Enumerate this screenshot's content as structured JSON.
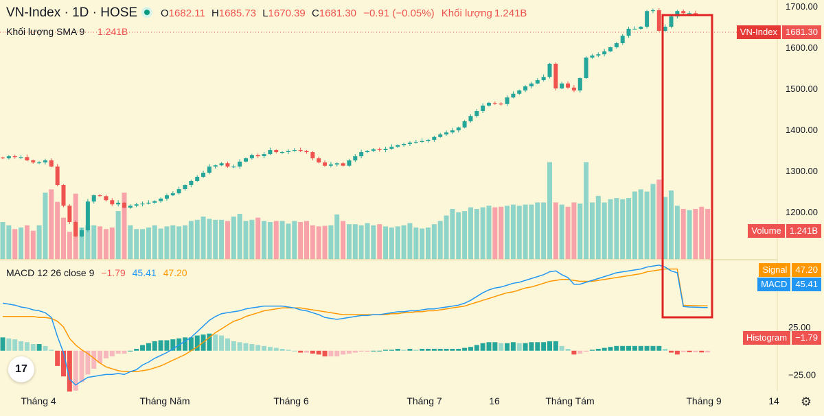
{
  "header": {
    "symbol": "VN-Index · 1D · HOSE",
    "open_label": "O",
    "open": "1682.11",
    "high_label": "H",
    "high": "1685.73",
    "low_label": "L",
    "low": "1670.39",
    "close_label": "C",
    "close": "1681.30",
    "change": "−0.91 (−0.05%)",
    "volume_label": "Khối lượng",
    "volume": "1.241B",
    "sma_label": "Khối lượng SMA 9",
    "sma_value": "1.241B"
  },
  "macd_header": {
    "label": "MACD 12 26 close 9",
    "hist": "−1.79",
    "macd": "45.41",
    "signal": "47.20"
  },
  "badges": {
    "price_name": "VN-Index",
    "price_value": "1681.30",
    "volume_name": "Volume",
    "volume_value": "1.241B",
    "signal_name": "Signal",
    "signal_value": "47.20",
    "macd_name": "MACD",
    "macd_value": "45.41",
    "hist_name": "Histogram",
    "hist_value": "−1.79"
  },
  "colors": {
    "up": "#26a69a",
    "down": "#ef5350",
    "up_vol": "#8fd4c8",
    "down_vol": "#f7a3a9",
    "macd_line": "#2196f3",
    "signal_line": "#ff9800",
    "highlight": "#e02424",
    "background": "#fdf7d9"
  },
  "icons": {
    "logo": "tradingview-logo-icon",
    "settings": "gear-icon",
    "status": "live-dot-icon"
  },
  "chart_data": {
    "type": "candlestick",
    "price_axis": {
      "ticks": [
        "1700.00",
        "1600.00",
        "1500.00",
        "1400.00",
        "1300.00",
        "1200.00"
      ],
      "range": [
        1085,
        1715
      ]
    },
    "macd_axis": {
      "ticks": [
        "25.00",
        "−25.00"
      ],
      "range": [
        -42,
        95
      ]
    },
    "time_axis": {
      "labels": [
        "Tháng 4",
        "Tháng Năm",
        "Tháng 6",
        "Tháng 7",
        "16",
        "Tháng Tám",
        "Tháng 9",
        "14"
      ]
    },
    "price": [
      1330,
      1335,
      1333,
      1333,
      1325,
      1320,
      1320,
      1325,
      1310,
      1265,
      1215,
      1175,
      1140,
      1155,
      1225,
      1240,
      1238,
      1228,
      1218,
      1222,
      1210,
      1215,
      1218,
      1220,
      1222,
      1226,
      1232,
      1240,
      1245,
      1255,
      1265,
      1275,
      1285,
      1295,
      1310,
      1313,
      1318,
      1310,
      1310,
      1322,
      1330,
      1338,
      1335,
      1340,
      1350,
      1345,
      1345,
      1348,
      1350,
      1348,
      1345,
      1330,
      1320,
      1312,
      1315,
      1318,
      1312,
      1325,
      1335,
      1345,
      1348,
      1352,
      1350,
      1353,
      1358,
      1362,
      1365,
      1368,
      1370,
      1372,
      1375,
      1382,
      1388,
      1393,
      1398,
      1405,
      1420,
      1433,
      1445,
      1458,
      1465,
      1463,
      1462,
      1478,
      1487,
      1495,
      1505,
      1512,
      1520,
      1528,
      1560,
      1500,
      1512,
      1502,
      1495,
      1525,
      1575,
      1580,
      1583,
      1590,
      1600,
      1610,
      1628,
      1645,
      1645,
      1650,
      1688,
      1690,
      1640,
      1650,
      1675,
      1688,
      1683,
      1683,
      1681
    ],
    "volume_b": [
      0.68,
      0.62,
      0.55,
      0.58,
      0.62,
      0.52,
      0.62,
      1.22,
      1.28,
      1.05,
      0.76,
      0.5,
      1.2,
      0.58,
      0.62,
      0.62,
      0.6,
      0.55,
      0.58,
      0.88,
      1.22,
      0.62,
      0.55,
      0.55,
      0.58,
      0.62,
      0.56,
      0.6,
      0.62,
      0.6,
      0.62,
      0.7,
      0.72,
      0.78,
      0.74,
      0.72,
      0.72,
      0.7,
      0.78,
      0.83,
      0.7,
      0.72,
      0.76,
      0.7,
      0.68,
      0.7,
      0.7,
      0.65,
      0.7,
      0.68,
      0.7,
      0.62,
      0.6,
      0.61,
      0.62,
      0.82,
      0.7,
      0.64,
      0.64,
      0.62,
      0.66,
      0.62,
      0.64,
      0.6,
      0.58,
      0.6,
      0.62,
      0.66,
      0.58,
      0.56,
      0.58,
      0.64,
      0.7,
      0.8,
      0.92,
      0.86,
      0.88,
      0.95,
      0.92,
      0.95,
      0.98,
      0.95,
      0.96,
      0.98,
      1.0,
      0.98,
      1.0,
      1.0,
      1.04,
      1.04,
      1.78,
      1.04,
      1.0,
      0.96,
      1.04,
      1.02,
      1.78,
      1.04,
      1.16,
      1.04,
      1.1,
      1.12,
      1.1,
      1.12,
      1.24,
      1.28,
      1.24,
      1.38,
      1.46,
      1.14,
      1.26,
      0.98,
      0.92,
      0.9,
      0.92,
      0.96,
      0.92
    ],
    "macd": [
      50,
      49,
      48,
      46,
      45,
      43,
      42,
      40,
      35,
      15,
      -2,
      -30,
      -36,
      -32,
      -28,
      -27,
      -26,
      -25,
      -25,
      -24,
      -25,
      -22,
      -20,
      -15,
      -12,
      -8,
      -5,
      -2,
      2,
      6,
      10,
      14,
      20,
      26,
      32,
      36,
      39,
      40,
      41,
      42,
      44,
      45,
      46,
      47,
      47,
      47,
      47,
      46,
      45,
      43,
      42,
      40,
      38,
      35,
      34,
      33,
      34,
      35,
      36,
      37,
      37,
      38,
      38,
      39,
      40,
      41,
      41,
      42,
      42,
      43,
      44,
      44,
      45,
      46,
      47,
      48,
      50,
      53,
      57,
      61,
      64,
      66,
      67,
      69,
      71,
      72,
      74,
      76,
      78,
      80,
      83,
      84,
      80,
      77,
      70,
      70,
      72,
      74,
      76,
      78,
      80,
      82,
      83,
      84,
      85,
      86,
      88,
      89,
      90,
      88,
      84,
      82,
      46.5,
      46.0,
      45.8,
      45.5,
      45.41
    ],
    "signal": [
      36,
      36,
      36,
      36,
      36,
      36,
      35,
      35,
      34,
      31,
      25,
      13,
      6,
      1,
      -3,
      -8,
      -13,
      -17,
      -19,
      -21,
      -22,
      -22,
      -22,
      -21,
      -20,
      -18,
      -16,
      -13,
      -10,
      -7,
      -4,
      0,
      4,
      9,
      14,
      19,
      23,
      27,
      31,
      33,
      36,
      38,
      40,
      42,
      43,
      44,
      45,
      45,
      45,
      45,
      44,
      43,
      42,
      41,
      40,
      39,
      38,
      38,
      38,
      38,
      38,
      38,
      38,
      38,
      39,
      39,
      40,
      40,
      41,
      41,
      42,
      42,
      43,
      44,
      45,
      46,
      47,
      49,
      51,
      53,
      55,
      57,
      59,
      61,
      62,
      64,
      66,
      67,
      69,
      71,
      73,
      74,
      75,
      75,
      74,
      73,
      73,
      73,
      74,
      75,
      76,
      77,
      78,
      79,
      80,
      81,
      83,
      84,
      85,
      86,
      86,
      86,
      47.8,
      47.6,
      47.4,
      47.3,
      47.2
    ]
  }
}
